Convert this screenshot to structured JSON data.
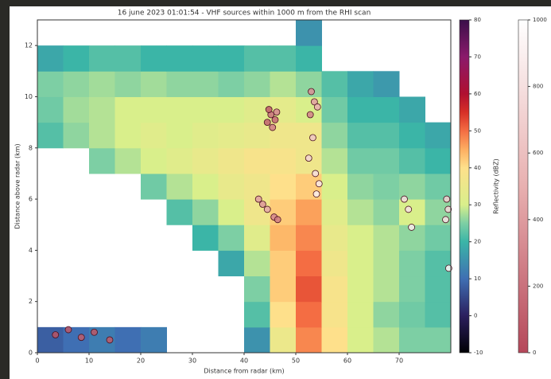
{
  "chart_data": {
    "type": "heatmap",
    "title": "16 june 2023 01:01:54 - VHF sources within 1000 m from the RHI scan",
    "xlabel": "Distance from radar (km)",
    "ylabel": "Distance above radar (km)",
    "xlim": [
      0,
      80
    ],
    "ylim": [
      0,
      13
    ],
    "xticks": [
      0,
      10,
      20,
      30,
      40,
      50,
      60,
      70
    ],
    "yticks": [
      0,
      2,
      4,
      6,
      8,
      10,
      12
    ],
    "x": [
      2.5,
      7.5,
      12.5,
      17.5,
      22.5,
      27.5,
      32.5,
      37.5,
      42.5,
      47.5,
      52.5,
      57.5,
      62.5,
      67.5,
      72.5,
      77.5
    ],
    "y": [
      0.5,
      1.5,
      2.5,
      3.5,
      4.5,
      5.5,
      6.5,
      7.5,
      8.5,
      9.5,
      10.5,
      11.5,
      12.5
    ],
    "z": [
      [
        8,
        10,
        12,
        10,
        12,
        null,
        null,
        null,
        15,
        35,
        48,
        40,
        30,
        28,
        25,
        25
      ],
      [
        null,
        null,
        null,
        null,
        null,
        null,
        null,
        null,
        22,
        40,
        50,
        38,
        30,
        26,
        24,
        22
      ],
      [
        null,
        null,
        null,
        null,
        null,
        null,
        null,
        null,
        25,
        42,
        52,
        38,
        30,
        28,
        25,
        22
      ],
      [
        null,
        null,
        null,
        null,
        null,
        null,
        null,
        18,
        28,
        42,
        50,
        36,
        30,
        28,
        25,
        22
      ],
      [
        null,
        null,
        null,
        null,
        null,
        null,
        20,
        25,
        32,
        44,
        48,
        34,
        30,
        28,
        26,
        24
      ],
      [
        null,
        null,
        null,
        null,
        null,
        22,
        26,
        30,
        36,
        42,
        46,
        32,
        28,
        26,
        30,
        26
      ],
      [
        null,
        null,
        null,
        null,
        24,
        28,
        30,
        34,
        36,
        40,
        42,
        30,
        26,
        25,
        26,
        24
      ],
      [
        null,
        null,
        25,
        28,
        30,
        32,
        34,
        36,
        38,
        38,
        36,
        28,
        24,
        24,
        22,
        20
      ],
      [
        22,
        26,
        28,
        30,
        32,
        30,
        32,
        33,
        34,
        36,
        36,
        26,
        22,
        22,
        20,
        18
      ],
      [
        24,
        27,
        28,
        30,
        30,
        30,
        30,
        30,
        32,
        33,
        30,
        24,
        20,
        20,
        18,
        null
      ],
      [
        25,
        26,
        27,
        26,
        27,
        26,
        26,
        25,
        26,
        28,
        26,
        22,
        18,
        16,
        null,
        null
      ],
      [
        18,
        20,
        22,
        22,
        20,
        20,
        20,
        20,
        22,
        22,
        20,
        null,
        null,
        null,
        null,
        null
      ],
      [
        null,
        null,
        null,
        null,
        null,
        null,
        null,
        null,
        null,
        null,
        15,
        null,
        null,
        null,
        null,
        null
      ]
    ],
    "colorbar": {
      "label": "Reflectivity (dBZ)",
      "lim": [
        -10,
        80
      ],
      "ticks": [
        -10,
        0,
        10,
        20,
        30,
        40,
        50,
        60,
        70,
        80
      ],
      "stops": [
        -10,
        0,
        10,
        20,
        25,
        30,
        40,
        45,
        50,
        55,
        60,
        70,
        80
      ],
      "colors": [
        "#000004",
        "#2b1f5e",
        "#3f6fb3",
        "#3bb5a7",
        "#7dcfa4",
        "#d9ef8b",
        "#fee08b",
        "#fdae61",
        "#f46d43",
        "#d73027",
        "#b01030",
        "#8b1a6b",
        "#3a0f4a"
      ]
    },
    "overlay": {
      "type": "scatter",
      "x": [
        44.5,
        45.2,
        46.0,
        45.5,
        44.8,
        46.3,
        53.0,
        53.6,
        52.8,
        54.2,
        53.3,
        52.5,
        53.8,
        42.8,
        43.6,
        44.5,
        45.8,
        46.5,
        54.5,
        54.0,
        71.0,
        71.8,
        72.4,
        79.2,
        79.5,
        79.0,
        79.6,
        3.5,
        6.0,
        8.5,
        11.0,
        14.0
      ],
      "y": [
        9.0,
        9.3,
        9.1,
        8.8,
        9.5,
        9.4,
        10.2,
        9.8,
        9.3,
        9.6,
        8.4,
        7.6,
        7.0,
        6.0,
        5.8,
        5.6,
        5.3,
        5.2,
        6.6,
        6.2,
        6.0,
        5.6,
        4.9,
        6.0,
        5.6,
        5.2,
        3.3,
        0.7,
        0.9,
        0.6,
        0.8,
        0.5
      ],
      "c": [
        120,
        200,
        150,
        260,
        90,
        300,
        350,
        420,
        280,
        500,
        640,
        720,
        800,
        420,
        380,
        460,
        300,
        250,
        850,
        900,
        780,
        820,
        880,
        700,
        760,
        820,
        950,
        60,
        80,
        100,
        70,
        90
      ],
      "colorbar": {
        "lim": [
          0,
          1000
        ],
        "ticks": [
          0,
          200,
          400,
          600,
          800,
          1000
        ],
        "stops": [
          0,
          500,
          1000
        ],
        "colors": [
          "#b5485a",
          "#e8b0b0",
          "#ffffff"
        ]
      }
    }
  }
}
